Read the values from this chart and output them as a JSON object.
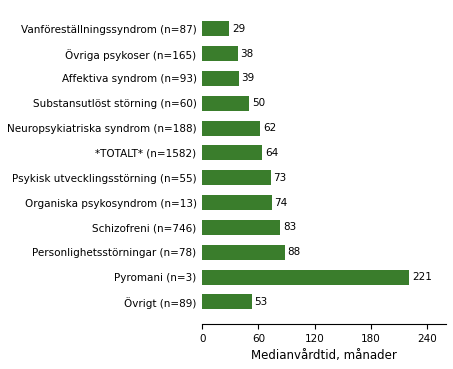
{
  "categories": [
    "Vanföreställningssyndrom (n=87)",
    "Övriga psykoser (n=165)",
    "Affektiva syndrom (n=93)",
    "Substansutlöst störning (n=60)",
    "Neuropsykiatriska syndrom (n=188)",
    "*TOTALT* (n=1582)",
    "Psykisk utvecklingsstörning (n=55)",
    "Organiska psykosyndrom (n=13)",
    "Schizofreni (n=746)",
    "Personlighetsstörningar (n=78)",
    "Pyromani (n=3)",
    "Övrigt (n=89)"
  ],
  "values": [
    29,
    38,
    39,
    50,
    62,
    64,
    73,
    74,
    83,
    88,
    221,
    53
  ],
  "bar_color": "#3a7d2c",
  "xlabel": "Medianvårdtid, månader",
  "xlim": [
    0,
    260
  ],
  "xticks": [
    0,
    60,
    120,
    180,
    240
  ],
  "value_fontsize": 7.5,
  "label_fontsize": 7.5,
  "xlabel_fontsize": 8.5,
  "background_color": "#ffffff"
}
